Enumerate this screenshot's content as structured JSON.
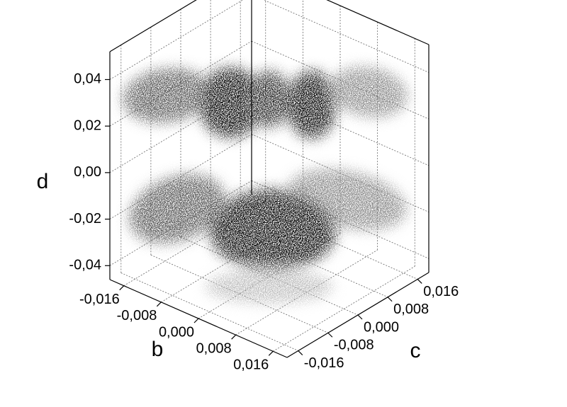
{
  "chart_data": {
    "type": "scatter3d",
    "xlabel": "b",
    "ylabel": "c",
    "zlabel": "d",
    "xlim": [
      -0.019,
      0.019
    ],
    "ylim": [
      -0.019,
      0.019
    ],
    "zlim": [
      -0.046,
      0.052
    ],
    "xticks": [
      {
        "value": -0.016,
        "label": "-0,016"
      },
      {
        "value": -0.008,
        "label": "-0,008"
      },
      {
        "value": 0,
        "label": "0,000"
      },
      {
        "value": 0.008,
        "label": "0,008"
      },
      {
        "value": 0.016,
        "label": "0,016"
      }
    ],
    "yticks": [
      {
        "value": -0.016,
        "label": "-0,016"
      },
      {
        "value": -0.008,
        "label": "-0,008"
      },
      {
        "value": 0,
        "label": "0,000"
      },
      {
        "value": 0.008,
        "label": "0,008"
      },
      {
        "value": 0.016,
        "label": "0,016"
      }
    ],
    "zticks": [
      {
        "value": -0.04,
        "label": "-0,04"
      },
      {
        "value": -0.02,
        "label": "-0,02"
      },
      {
        "value": 0,
        "label": "0,00"
      },
      {
        "value": 0.02,
        "label": "0,02"
      },
      {
        "value": 0.04,
        "label": "0,04"
      }
    ],
    "grid": true
  }
}
